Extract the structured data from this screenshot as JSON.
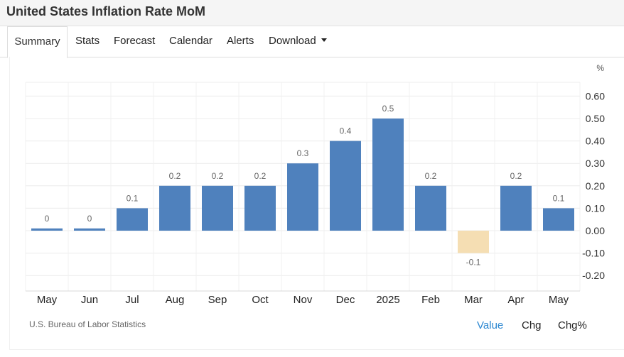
{
  "header": {
    "title": "United States Inflation Rate MoM"
  },
  "tabs": [
    {
      "label": "Summary"
    },
    {
      "label": "Stats"
    },
    {
      "label": "Forecast"
    },
    {
      "label": "Calendar"
    },
    {
      "label": "Alerts"
    },
    {
      "label": "Download"
    }
  ],
  "chart_data": {
    "type": "bar",
    "title": "",
    "xlabel": "",
    "ylabel": "",
    "unit_label": "%",
    "categories": [
      "May",
      "Jun",
      "Jul",
      "Aug",
      "Sep",
      "Oct",
      "Nov",
      "Dec",
      "2025",
      "Feb",
      "Mar",
      "Apr",
      "May"
    ],
    "values": [
      0.01,
      0.01,
      0.1,
      0.2,
      0.2,
      0.2,
      0.3,
      0.4,
      0.5,
      0.2,
      -0.1,
      0.2,
      0.1
    ],
    "value_labels": [
      "0",
      "0",
      "0.1",
      "0.2",
      "0.2",
      "0.2",
      "0.3",
      "0.4",
      "0.5",
      "0.2",
      "-0.1",
      "0.2",
      "0.1"
    ],
    "ylim": [
      -0.25,
      0.6
    ],
    "yticks": [
      "0.60",
      "0.50",
      "0.40",
      "0.30",
      "0.20",
      "0.10",
      "0.00",
      "-0.10",
      "-0.20"
    ],
    "ytick_values": [
      0.6,
      0.5,
      0.4,
      0.3,
      0.2,
      0.1,
      0.0,
      -0.1,
      -0.2
    ],
    "axis_position": "right",
    "grid": true,
    "colors": {
      "positive": "#4f81bd",
      "negative": "#f5deb3"
    }
  },
  "footer": {
    "source": "U.S. Bureau of Labor Statistics",
    "view_options": [
      {
        "label": "Value",
        "active": true
      },
      {
        "label": "Chg",
        "active": false
      },
      {
        "label": "Chg%",
        "active": false
      }
    ]
  }
}
